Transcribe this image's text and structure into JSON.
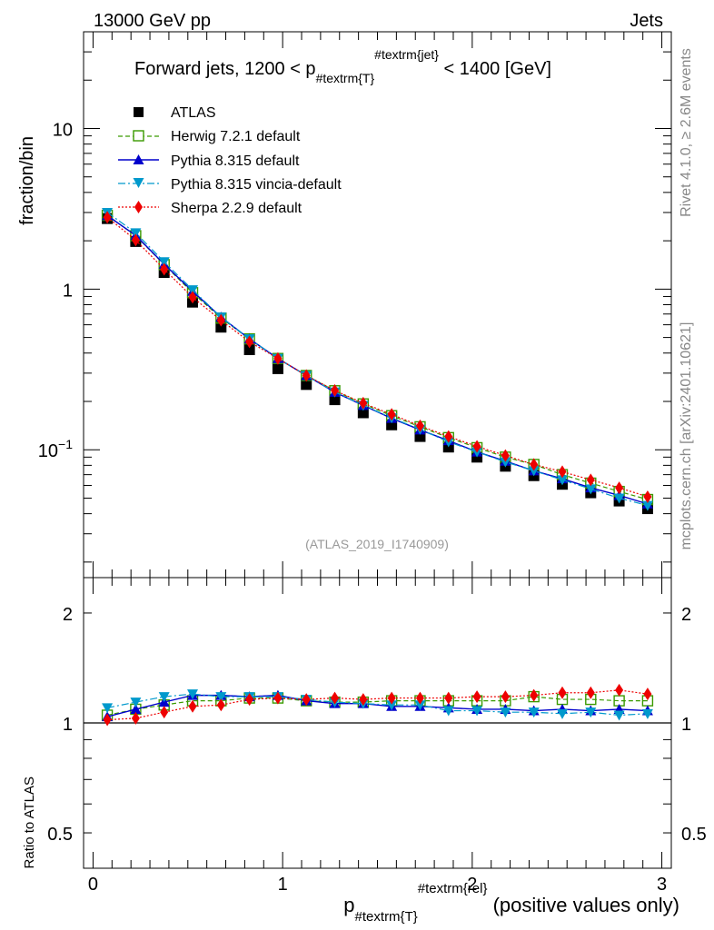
{
  "header": {
    "left": "13000 GeV pp",
    "right": "Jets"
  },
  "side": {
    "rivet": "Rivet 4.1.0, ≥ 2.6M events",
    "mcplots": "mcplots.cern.ch [arXiv:2401.10621]"
  },
  "analysis_tag": "(ATLAS_2019_I1740909)",
  "colors": {
    "atlas": "#000000",
    "herwig": "#3a9a00",
    "pythia": "#0000cc",
    "vincia": "#0099cc",
    "sherpa": "#ee0000"
  },
  "chart_data": [
    {
      "type": "scatter",
      "title": "Forward jets, 1200 < p_{#textrm{T}}^{#textrm{jet}} < 1400 [GeV]",
      "title_parts": {
        "pre": "Forward jets, 1200 < p",
        "sub": "#textrm{T}",
        "sup": "#textrm{jet}",
        "post": " < 1400 [GeV]"
      },
      "ylabel": "fraction/bin",
      "yscale": "log",
      "ylim": [
        0.016,
        40
      ],
      "xlim": [
        -0.05,
        3.05
      ],
      "yticks": [
        {
          "v": 10,
          "label": "10"
        },
        {
          "v": 1,
          "label": "1"
        }
      ],
      "ytick_exp": {
        "v": 0.1,
        "base": "10",
        "exp": "−1"
      },
      "legend_position": "top-left",
      "x": [
        0.075,
        0.225,
        0.375,
        0.525,
        0.675,
        0.825,
        0.975,
        1.125,
        1.275,
        1.425,
        1.575,
        1.725,
        1.875,
        2.025,
        2.175,
        2.325,
        2.475,
        2.625,
        2.775,
        2.925
      ],
      "series": [
        {
          "key": "atlas",
          "name": "ATLAS",
          "marker": "square-filled",
          "line": "none",
          "values": [
            2.75,
            1.98,
            1.27,
            0.83,
            0.58,
            0.42,
            0.32,
            0.255,
            0.205,
            0.17,
            0.143,
            0.121,
            0.104,
            0.09,
            0.079,
            0.069,
            0.061,
            0.054,
            0.048,
            0.043
          ]
        },
        {
          "key": "herwig",
          "name": "Herwig 7.2.1 default",
          "marker": "square-open",
          "line": "dashed",
          "values": [
            2.88,
            2.15,
            1.42,
            0.95,
            0.66,
            0.49,
            0.37,
            0.29,
            0.233,
            0.193,
            0.163,
            0.139,
            0.119,
            0.103,
            0.09,
            0.081,
            0.07,
            0.062,
            0.055,
            0.049
          ]
        },
        {
          "key": "pythia",
          "name": "Pythia 8.315 default",
          "marker": "triangle-up",
          "line": "solid",
          "values": [
            2.87,
            2.16,
            1.43,
            0.97,
            0.67,
            0.49,
            0.37,
            0.29,
            0.228,
            0.189,
            0.157,
            0.133,
            0.114,
            0.097,
            0.085,
            0.074,
            0.066,
            0.058,
            0.052,
            0.046
          ]
        },
        {
          "key": "vincia",
          "name": "Pythia 8.315 vincia-default",
          "marker": "triangle-down",
          "line": "dashdot",
          "values": [
            3.0,
            2.24,
            1.48,
            0.99,
            0.67,
            0.49,
            0.37,
            0.29,
            0.229,
            0.189,
            0.158,
            0.134,
            0.112,
            0.097,
            0.084,
            0.074,
            0.065,
            0.057,
            0.05,
            0.045
          ]
        },
        {
          "key": "sherpa",
          "name": "Sherpa 2.2.9 default",
          "marker": "diamond",
          "line": "dotted",
          "values": [
            2.8,
            2.02,
            1.33,
            0.89,
            0.64,
            0.47,
            0.37,
            0.29,
            0.234,
            0.195,
            0.166,
            0.141,
            0.121,
            0.105,
            0.092,
            0.081,
            0.073,
            0.065,
            0.058,
            0.051
          ]
        }
      ]
    },
    {
      "type": "scatter",
      "title": "",
      "ylabel": "Ratio to ATLAS",
      "xlabel": "p_{#textrm{T}}^{#textrm{rel}} (positive values only)",
      "xlabel_parts": {
        "pre": "p",
        "sub": "#textrm{T}",
        "sup": "#textrm{rel}",
        "post": " (positive values only)"
      },
      "yscale": "log",
      "ylim": [
        0.4,
        2.5
      ],
      "xlim": [
        -0.05,
        3.05
      ],
      "yticks": [
        {
          "v": 2,
          "label": "2"
        },
        {
          "v": 1,
          "label": "1"
        },
        {
          "v": 0.5,
          "label": "0.5"
        }
      ],
      "xticks": [
        {
          "v": 0,
          "label": "0"
        },
        {
          "v": 1,
          "label": "1"
        },
        {
          "v": 2,
          "label": "2"
        },
        {
          "v": 3,
          "label": "3"
        }
      ],
      "reference_line": 1,
      "x": [
        0.075,
        0.225,
        0.375,
        0.525,
        0.675,
        0.825,
        0.975,
        1.125,
        1.275,
        1.425,
        1.575,
        1.725,
        1.875,
        2.025,
        2.175,
        2.325,
        2.475,
        2.625,
        2.775,
        2.925
      ],
      "series": [
        {
          "key": "herwig",
          "name": "Herwig 7.2.1 default",
          "marker": "square-open",
          "line": "dashed",
          "values": [
            1.05,
            1.09,
            1.12,
            1.15,
            1.15,
            1.17,
            1.17,
            1.15,
            1.14,
            1.14,
            1.15,
            1.15,
            1.15,
            1.15,
            1.15,
            1.18,
            1.16,
            1.16,
            1.15,
            1.15
          ]
        },
        {
          "key": "pythia",
          "name": "Pythia 8.315 default",
          "marker": "triangle-up",
          "line": "solid",
          "values": [
            1.04,
            1.09,
            1.14,
            1.19,
            1.19,
            1.18,
            1.19,
            1.15,
            1.13,
            1.13,
            1.11,
            1.11,
            1.1,
            1.09,
            1.09,
            1.08,
            1.09,
            1.08,
            1.09,
            1.08
          ]
        },
        {
          "key": "vincia",
          "name": "Pythia 8.315 vincia-default",
          "marker": "triangle-down",
          "line": "dashdot",
          "values": [
            1.1,
            1.14,
            1.18,
            1.2,
            1.18,
            1.18,
            1.18,
            1.16,
            1.14,
            1.13,
            1.12,
            1.12,
            1.08,
            1.08,
            1.07,
            1.07,
            1.06,
            1.07,
            1.05,
            1.06
          ]
        },
        {
          "key": "sherpa",
          "name": "Sherpa 2.2.9 default",
          "marker": "diamond",
          "line": "dotted",
          "values": [
            1.02,
            1.03,
            1.07,
            1.11,
            1.12,
            1.16,
            1.17,
            1.16,
            1.17,
            1.16,
            1.17,
            1.17,
            1.17,
            1.18,
            1.18,
            1.19,
            1.21,
            1.21,
            1.23,
            1.2
          ]
        }
      ]
    }
  ]
}
